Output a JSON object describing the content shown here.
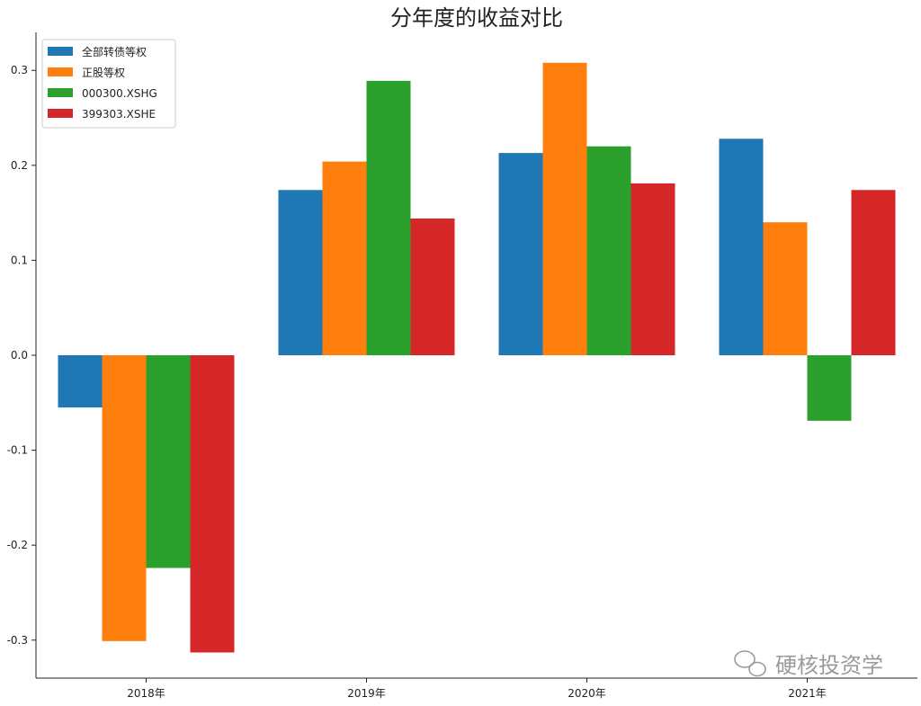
{
  "chart_data": {
    "type": "bar",
    "title": "分年度的收益对比",
    "categories": [
      "2018年",
      "2019年",
      "2020年",
      "2021年"
    ],
    "series": [
      {
        "name": "全部转债等权",
        "color": "#1f77b4",
        "values": [
          -0.055,
          0.174,
          0.213,
          0.228
        ]
      },
      {
        "name": "正股等权",
        "color": "#ff7f0e",
        "values": [
          -0.301,
          0.204,
          0.308,
          0.14
        ]
      },
      {
        "name": "000300.XSHG",
        "color": "#2ca02c",
        "values": [
          -0.224,
          0.289,
          0.22,
          -0.069
        ]
      },
      {
        "name": "399303.XSHE",
        "color": "#d62728",
        "values": [
          -0.313,
          0.144,
          0.181,
          0.174
        ]
      }
    ],
    "ylim": [
      -0.34,
      0.34
    ],
    "yticks": [
      "-0.3",
      "-0.2",
      "-0.1",
      "0.0",
      "0.1",
      "0.2",
      "0.3"
    ],
    "grid": false,
    "legend_position": "top-left"
  },
  "watermark": {
    "text": "硬核投资学",
    "icon": "wechat-icon"
  }
}
